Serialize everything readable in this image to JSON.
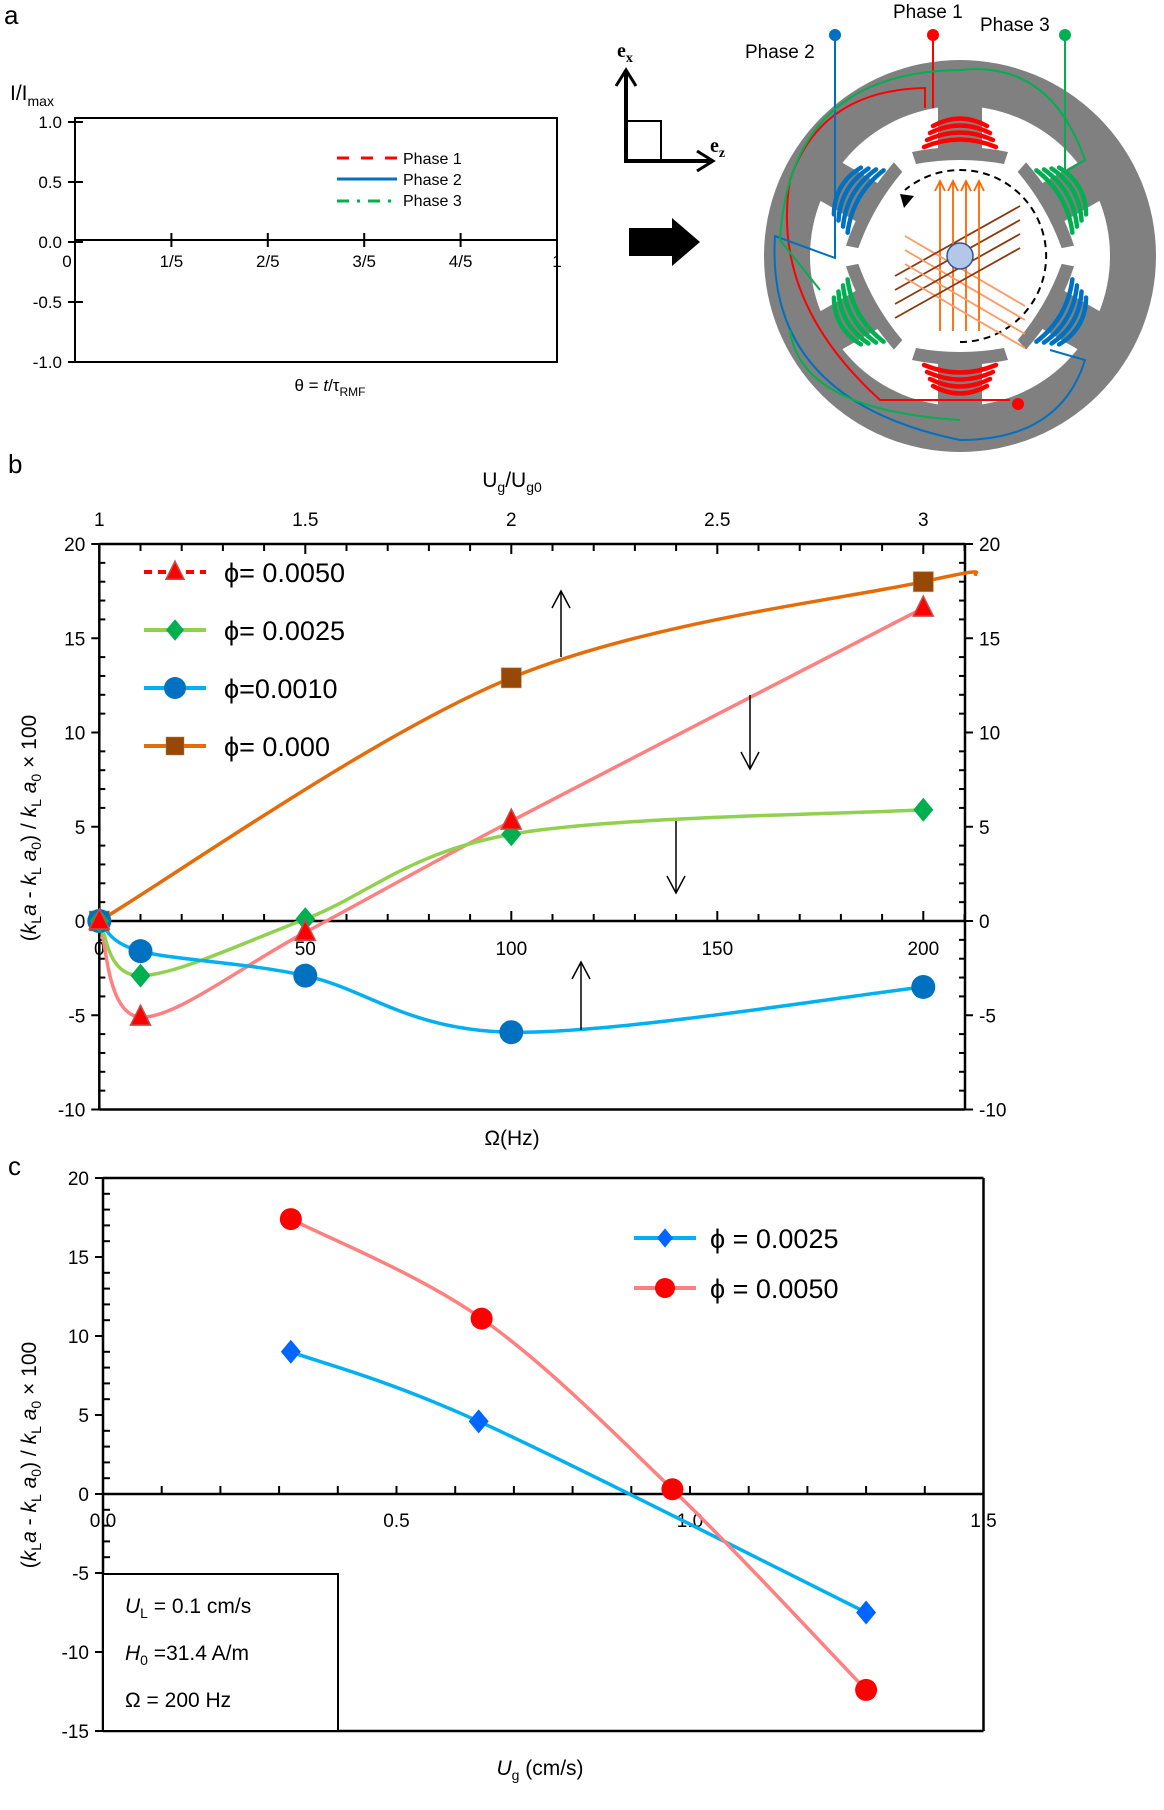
{
  "panel_labels": {
    "a": "a",
    "b": "b",
    "c": "c"
  },
  "chart_data": [
    {
      "id": "a",
      "type": "line",
      "ylabel": {
        "main": "I/I",
        "sub": "max"
      },
      "xlabel": {
        "main": "θ = ",
        "italic": "t",
        "mid": "/τ",
        "sub": "RMF"
      },
      "xticks": [
        "0",
        "1/5",
        "2/5",
        "3/5",
        "4/5",
        "1"
      ],
      "yticks": [
        "1.0",
        "0.5",
        "0.0",
        "-0.5",
        "-1.0"
      ],
      "xlim": [
        0,
        1
      ],
      "ylim": [
        -1,
        1
      ],
      "legend_position": "top-right",
      "series": [
        {
          "name": "Phase 1",
          "color": "#ff0000",
          "style": "dashed",
          "x": [],
          "y": []
        },
        {
          "name": "Phase 2",
          "color": "#0070c0",
          "style": "solid",
          "x": [],
          "y": []
        },
        {
          "name": "Phase 3",
          "color": "#00b050",
          "style": "dash-dot",
          "x": [],
          "y": []
        }
      ]
    },
    {
      "id": "b",
      "type": "line",
      "xlabel": "Ω(Hz)",
      "top_xlabel": {
        "main": "U",
        "sub1": "g",
        "mid": "/U",
        "sub2": "g0"
      },
      "ylabel_parts": [
        "(",
        "k",
        "L",
        "a",
        " - ",
        "k",
        "L",
        " ",
        "a",
        "0",
        ") / ",
        "k",
        "L",
        " ",
        "a",
        "0",
        " × 100"
      ],
      "xlim": [
        0,
        212
      ],
      "ylim": [
        -10,
        20
      ],
      "xticks": [
        "0",
        "50",
        "100",
        "150",
        "200"
      ],
      "xtick_values": [
        0,
        50,
        100,
        150,
        200
      ],
      "top_xticks": [
        "1",
        "1.5",
        "2",
        "2.5",
        "3"
      ],
      "yticks": [
        "20",
        "15",
        "10",
        "5",
        "0",
        "-5",
        "-10"
      ],
      "ytick_values": [
        20,
        15,
        10,
        5,
        0,
        -5,
        -10
      ],
      "right_yticks": [
        "20",
        "15",
        "10",
        "5",
        "0",
        "-5",
        "-10"
      ],
      "legend_position": "top-left",
      "series": [
        {
          "name": "ϕ= 0.0050",
          "marker": "triangle",
          "marker_color": "#ff0000",
          "line_color": "#ff8080",
          "x": [
            0,
            10,
            50,
            100,
            200
          ],
          "y": [
            0,
            -5.1,
            -0.6,
            5.3,
            16.6
          ]
        },
        {
          "name": "ϕ= 0.0025",
          "marker": "diamond",
          "marker_color": "#00b050",
          "line_color": "#92d050",
          "x": [
            0,
            10,
            50,
            100,
            200
          ],
          "y": [
            0,
            -2.9,
            0.1,
            4.6,
            5.9
          ]
        },
        {
          "name": "ϕ=0.0010",
          "marker": "circle",
          "marker_color": "#0070c0",
          "line_color": "#00b0f0",
          "x": [
            0,
            10,
            50,
            100,
            200
          ],
          "y": [
            0,
            -1.6,
            -2.9,
            -5.9,
            -3.5
          ]
        },
        {
          "name": "ϕ= 0.000",
          "marker": "square",
          "marker_color": "#974706",
          "line_color": "#e46c0a",
          "x": [
            0,
            100,
            200
          ],
          "y": [
            0,
            12.9,
            18.0
          ]
        }
      ]
    },
    {
      "id": "c",
      "type": "line",
      "xlabel": {
        "main": "U",
        "sub": "g",
        "rest": " (cm/s)"
      },
      "ylabel_parts": [
        "(",
        "k",
        "L",
        "a",
        " - ",
        "k",
        "L",
        " ",
        "a",
        "0",
        ") / ",
        "k",
        "L",
        " ",
        "a",
        "0",
        " × 100"
      ],
      "xlim": [
        0,
        1.5
      ],
      "ylim": [
        -15,
        20
      ],
      "xticks": [
        "0.0",
        "0.5",
        "1.0",
        "1.5"
      ],
      "xtick_values": [
        0,
        0.5,
        1.0,
        1.5
      ],
      "yticks": [
        "20",
        "15",
        "10",
        "5",
        "0",
        "-5",
        "-10",
        "-15"
      ],
      "ytick_values": [
        20,
        15,
        10,
        5,
        0,
        -5,
        -10,
        -15
      ],
      "legend_position": "top-right",
      "series": [
        {
          "name": "ϕ = 0.0025",
          "marker": "diamond",
          "marker_color": "#0066ff",
          "line_color": "#00b0f0",
          "x": [
            0.32,
            0.64,
            1.3
          ],
          "y": [
            9.0,
            4.6,
            -7.5
          ]
        },
        {
          "name": "ϕ = 0.0050",
          "marker": "circle",
          "marker_color": "#ff0000",
          "line_color": "#ff8080",
          "x": [
            0.32,
            0.645,
            0.97,
            1.3
          ],
          "y": [
            17.4,
            11.1,
            0.3,
            -12.4
          ]
        }
      ],
      "conditions": [
        {
          "sym": "U",
          "sub": "L",
          "rest": " = 0.1 cm/s"
        },
        {
          "sym": "H",
          "sub": "0",
          "rest": " =31.4 A/m"
        },
        {
          "sym": "Ω",
          "sub": "",
          "rest": " = 200 Hz"
        }
      ]
    }
  ],
  "diagram": {
    "axis_x": {
      "main": "e",
      "sub": "x"
    },
    "axis_z": {
      "main": "e",
      "sub": "z"
    },
    "phase_labels": [
      {
        "text": "Phase 1",
        "color": "#ff0000"
      },
      {
        "text": "Phase 2",
        "color": "#0070c0"
      },
      {
        "text": "Phase 3",
        "color": "#00b050"
      }
    ],
    "stator_color": "#808080"
  }
}
